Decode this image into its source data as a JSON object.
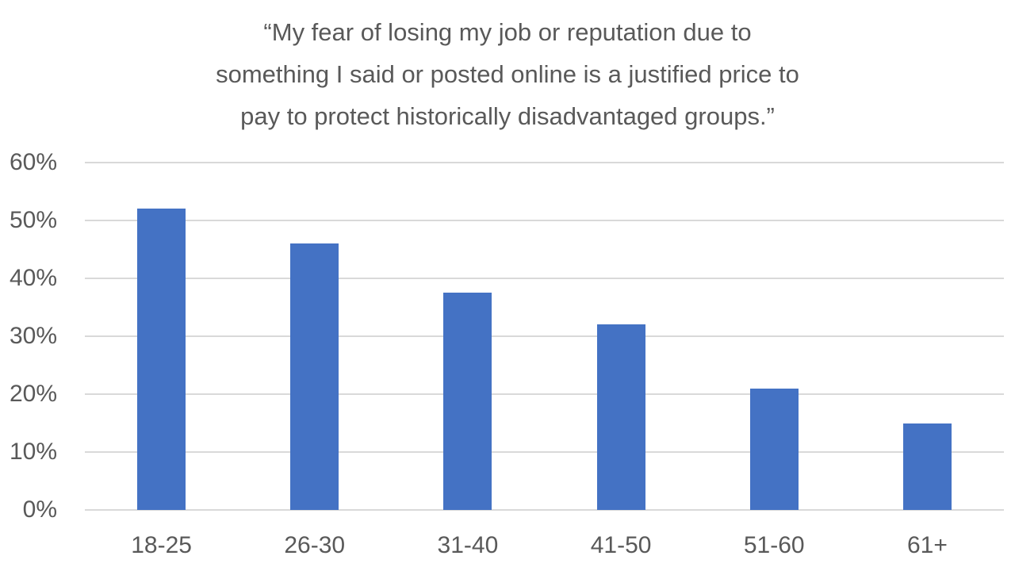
{
  "chart_data": {
    "type": "bar",
    "title": "“My fear of losing my job or reputation due to something I said or posted online is a justified price to pay to protect historically disadvantaged groups.”",
    "title_lines": [
      "“My fear of losing my job or reputation due to",
      "something I said or posted online is a justified price to",
      "pay to protect historically disadvantaged groups.”"
    ],
    "categories": [
      "18-25",
      "26-30",
      "31-40",
      "41-50",
      "51-60",
      "61+"
    ],
    "values": [
      52,
      46,
      37.5,
      32,
      21,
      15
    ],
    "xlabel": "",
    "ylabel": "",
    "ylim": [
      0,
      60
    ],
    "ytick_step": 10,
    "ytick_labels": [
      "0%",
      "10%",
      "20%",
      "30%",
      "40%",
      "50%",
      "60%"
    ],
    "grid": true,
    "legend": "none",
    "colors": {
      "bar": "#4472C4",
      "text": "#595959",
      "gridline": "#D9D9D9",
      "background": "#FFFFFF"
    }
  }
}
